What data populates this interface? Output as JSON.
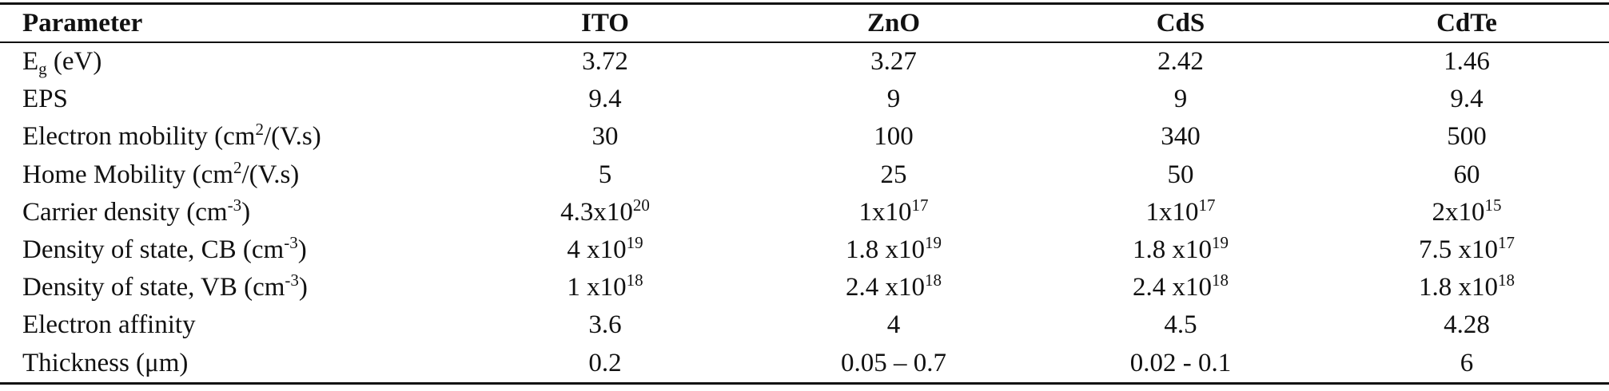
{
  "table": {
    "header": [
      "Parameter",
      "ITO",
      "ZnO",
      "CdS",
      "CdTe"
    ],
    "rows": [
      [
        [
          {
            "t": "E"
          },
          {
            "sub": "g"
          },
          {
            "t": " (eV)"
          }
        ],
        "3.72",
        "3.27",
        "2.42",
        "1.46"
      ],
      [
        "EPS",
        "9.4",
        "9",
        "9",
        "9.4"
      ],
      [
        [
          {
            "t": "Electron mobility (cm"
          },
          {
            "sup": "2"
          },
          {
            "t": "/(V.s)"
          }
        ],
        "30",
        "100",
        "340",
        "500"
      ],
      [
        [
          {
            "t": "Home Mobility (cm"
          },
          {
            "sup": "2"
          },
          {
            "t": "/(V.s)"
          }
        ],
        "5",
        "25",
        "50",
        "60"
      ],
      [
        [
          {
            "t": "Carrier density (cm"
          },
          {
            "sup": "-3"
          },
          {
            "t": ")"
          }
        ],
        [
          {
            "t": "4.3x10"
          },
          {
            "sup": "20"
          }
        ],
        [
          {
            "t": "1x10"
          },
          {
            "sup": "17"
          }
        ],
        [
          {
            "t": "1x10"
          },
          {
            "sup": "17"
          }
        ],
        [
          {
            "t": "2x10"
          },
          {
            "sup": "15"
          }
        ]
      ],
      [
        [
          {
            "t": "Density of state, CB (cm"
          },
          {
            "sup": "-3"
          },
          {
            "t": ")"
          }
        ],
        [
          {
            "t": "4 x10"
          },
          {
            "sup": "19"
          }
        ],
        [
          {
            "t": "1.8 x10"
          },
          {
            "sup": "19"
          }
        ],
        [
          {
            "t": "1.8 x10"
          },
          {
            "sup": "19"
          }
        ],
        [
          {
            "t": "7.5 x10"
          },
          {
            "sup": "17"
          }
        ]
      ],
      [
        [
          {
            "t": "Density of state, VB (cm"
          },
          {
            "sup": "-3"
          },
          {
            "t": ")"
          }
        ],
        [
          {
            "t": "1 x10"
          },
          {
            "sup": "18"
          }
        ],
        [
          {
            "t": "2.4 x10"
          },
          {
            "sup": "18"
          }
        ],
        [
          {
            "t": "2.4 x10"
          },
          {
            "sup": "18"
          }
        ],
        [
          {
            "t": "1.8 x10"
          },
          {
            "sup": "18"
          }
        ]
      ],
      [
        "Electron affinity",
        "3.6",
        "4",
        "4.5",
        "4.28"
      ],
      [
        "Thickness (μm)",
        "0.2",
        "0.05 – 0.7",
        "0.02 - 0.1",
        "6"
      ]
    ]
  }
}
